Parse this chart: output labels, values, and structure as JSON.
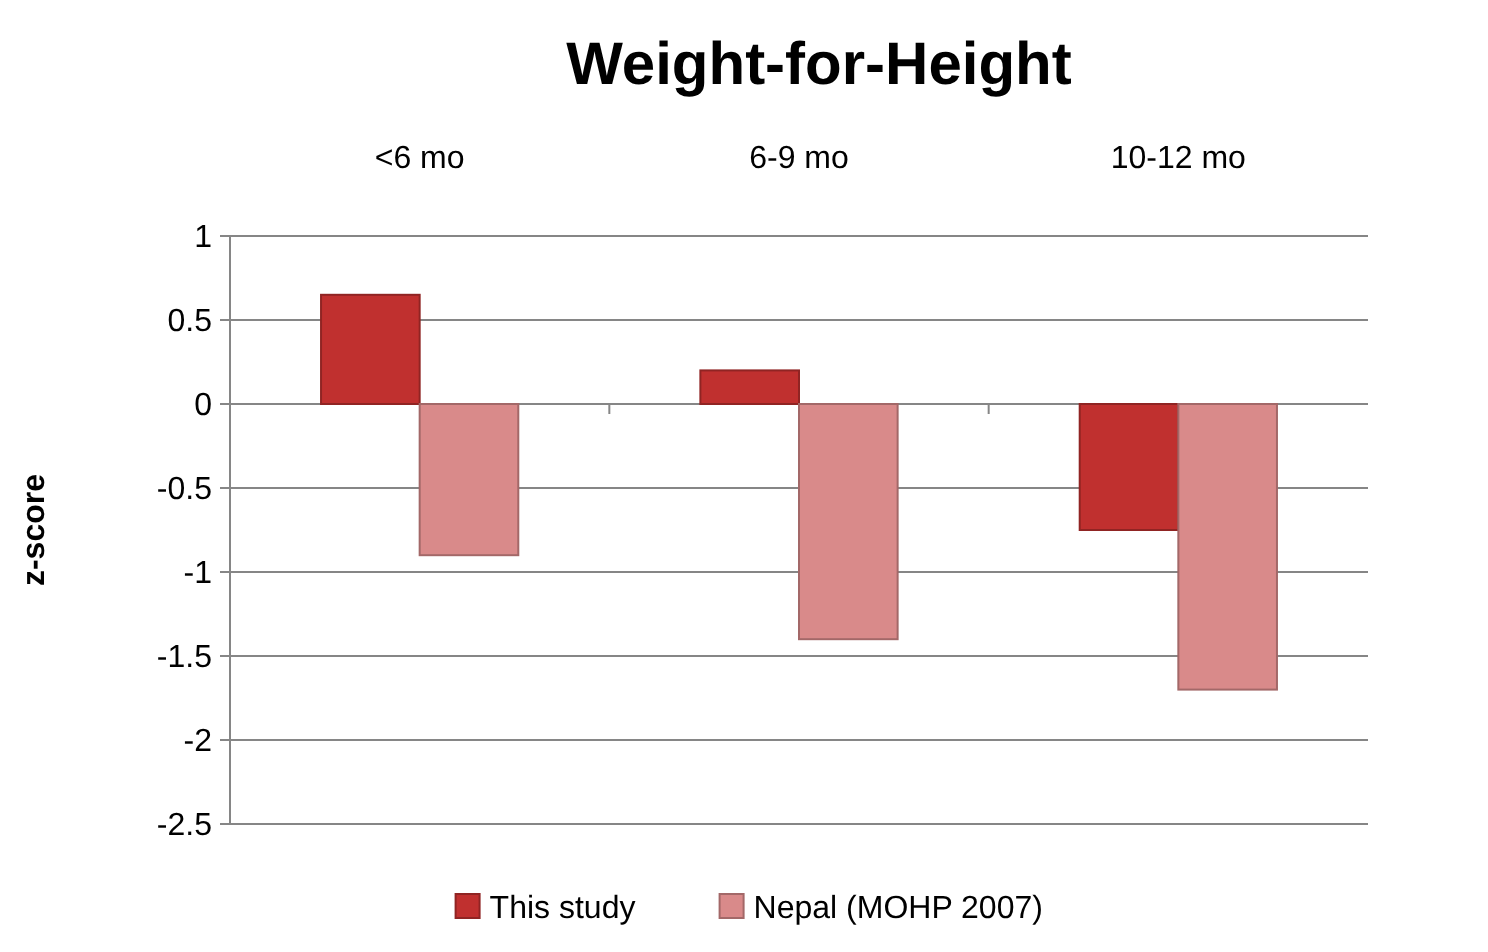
{
  "chart_data": {
    "type": "bar",
    "title": "Weight-for-Height",
    "ylabel": "z-score",
    "categories": [
      "<6 mo",
      "6-9 mo",
      "10-12 mo"
    ],
    "series": [
      {
        "name": "This study",
        "color": "#c0302f",
        "values": [
          0.65,
          0.2,
          -0.75
        ]
      },
      {
        "name": "Nepal (MOHP 2007)",
        "color": "#d98a8a",
        "values": [
          -0.9,
          -1.4,
          -1.7
        ]
      }
    ],
    "ylim": [
      -2.5,
      1
    ],
    "yticks": [
      -2.5,
      -2,
      -1.5,
      -1,
      -0.5,
      0,
      0.5,
      1
    ],
    "grid": "y",
    "legend": "bottom"
  }
}
